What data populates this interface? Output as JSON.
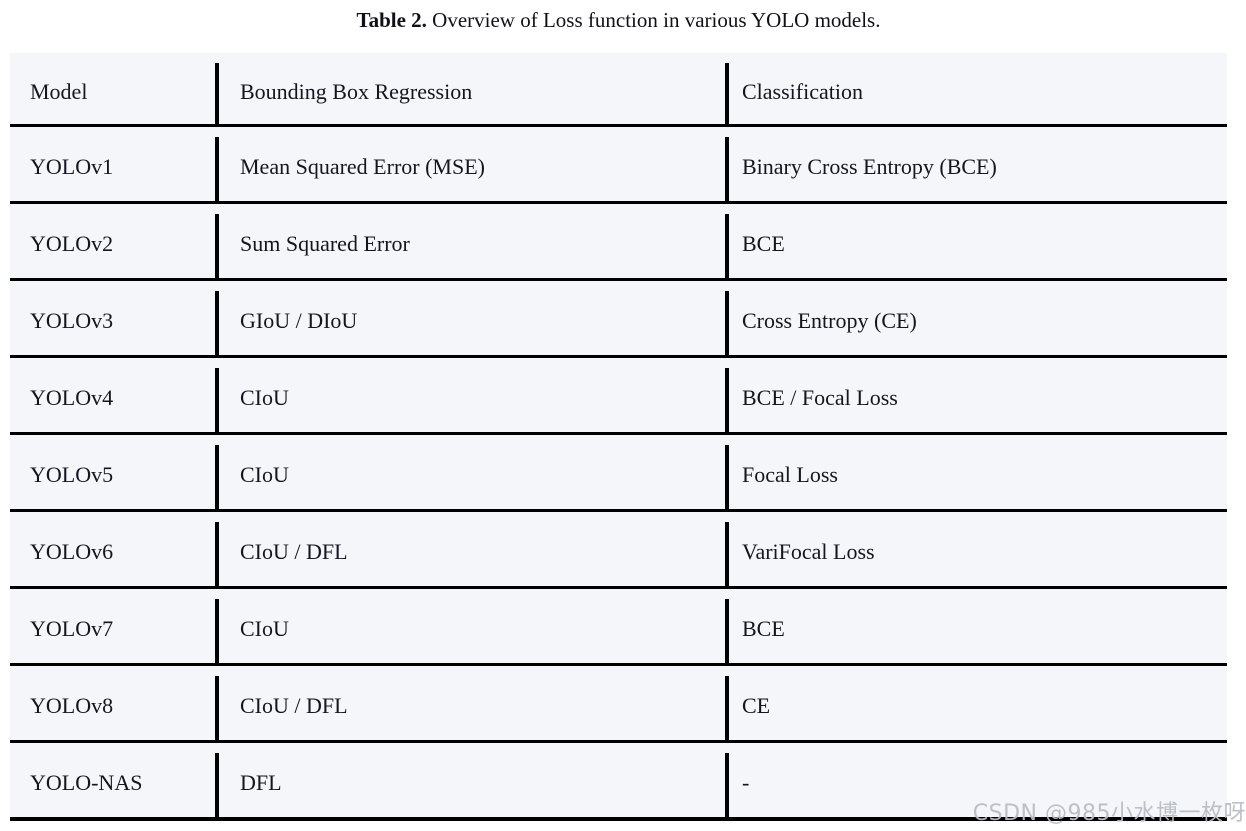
{
  "page": {
    "title": {
      "bold": "Table 2.",
      "rest": " Overview of Loss function in various YOLO models."
    }
  },
  "table": {
    "columns": [
      "Model",
      "Bounding Box Regression",
      "Classification"
    ],
    "rows": [
      {
        "model": "YOLOv1",
        "bbox_regression": "Mean Squared Error (MSE)",
        "classification": "Binary Cross Entropy (BCE)"
      },
      {
        "model": "YOLOv2",
        "bbox_regression": "Sum Squared Error",
        "classification": "BCE"
      },
      {
        "model": "YOLOv3",
        "bbox_regression": "GIoU / DIoU",
        "classification": "Cross Entropy (CE)"
      },
      {
        "model": "YOLOv4",
        "bbox_regression": "CIoU",
        "classification": "BCE / Focal Loss"
      },
      {
        "model": "YOLOv5",
        "bbox_regression": "CIoU",
        "classification": "Focal Loss"
      },
      {
        "model": "YOLOv6",
        "bbox_regression": "CIoU / DFL",
        "classification": "VariFocal Loss"
      },
      {
        "model": "YOLOv7",
        "bbox_regression": "CIoU",
        "classification": "BCE"
      },
      {
        "model": "YOLOv8",
        "bbox_regression": "CIoU / DFL",
        "classification": "CE"
      },
      {
        "model": "YOLO-NAS",
        "bbox_regression": "DFL",
        "classification": "-"
      }
    ]
  },
  "chart_data": {
    "type": "table",
    "title": "Table 2. Overview of Loss function in various YOLO models.",
    "columns": [
      "Model",
      "Bounding Box Regression",
      "Classification"
    ],
    "rows": [
      [
        "YOLOv1",
        "Mean Squared Error (MSE)",
        "Binary Cross Entropy (BCE)"
      ],
      [
        "YOLOv2",
        "Sum Squared Error",
        "BCE"
      ],
      [
        "YOLOv3",
        "GIoU / DIoU",
        "Cross Entropy (CE)"
      ],
      [
        "YOLOv4",
        "CIoU",
        "BCE / Focal Loss"
      ],
      [
        "YOLOv5",
        "CIoU",
        "Focal Loss"
      ],
      [
        "YOLOv6",
        "CIoU / DFL",
        "VariFocal Loss"
      ],
      [
        "YOLOv7",
        "CIoU",
        "BCE"
      ],
      [
        "YOLOv8",
        "CIoU / DFL",
        "CE"
      ],
      [
        "YOLO-NAS",
        "DFL",
        "-"
      ]
    ]
  },
  "watermark": {
    "text": "CSDN @985小水博一枚呀"
  },
  "colors": {
    "page_background": "#ffffff",
    "cell_background": "#f5f6fa",
    "grid_line": "#000000",
    "text": "#15151f",
    "watermark": "#b9bdc6"
  }
}
